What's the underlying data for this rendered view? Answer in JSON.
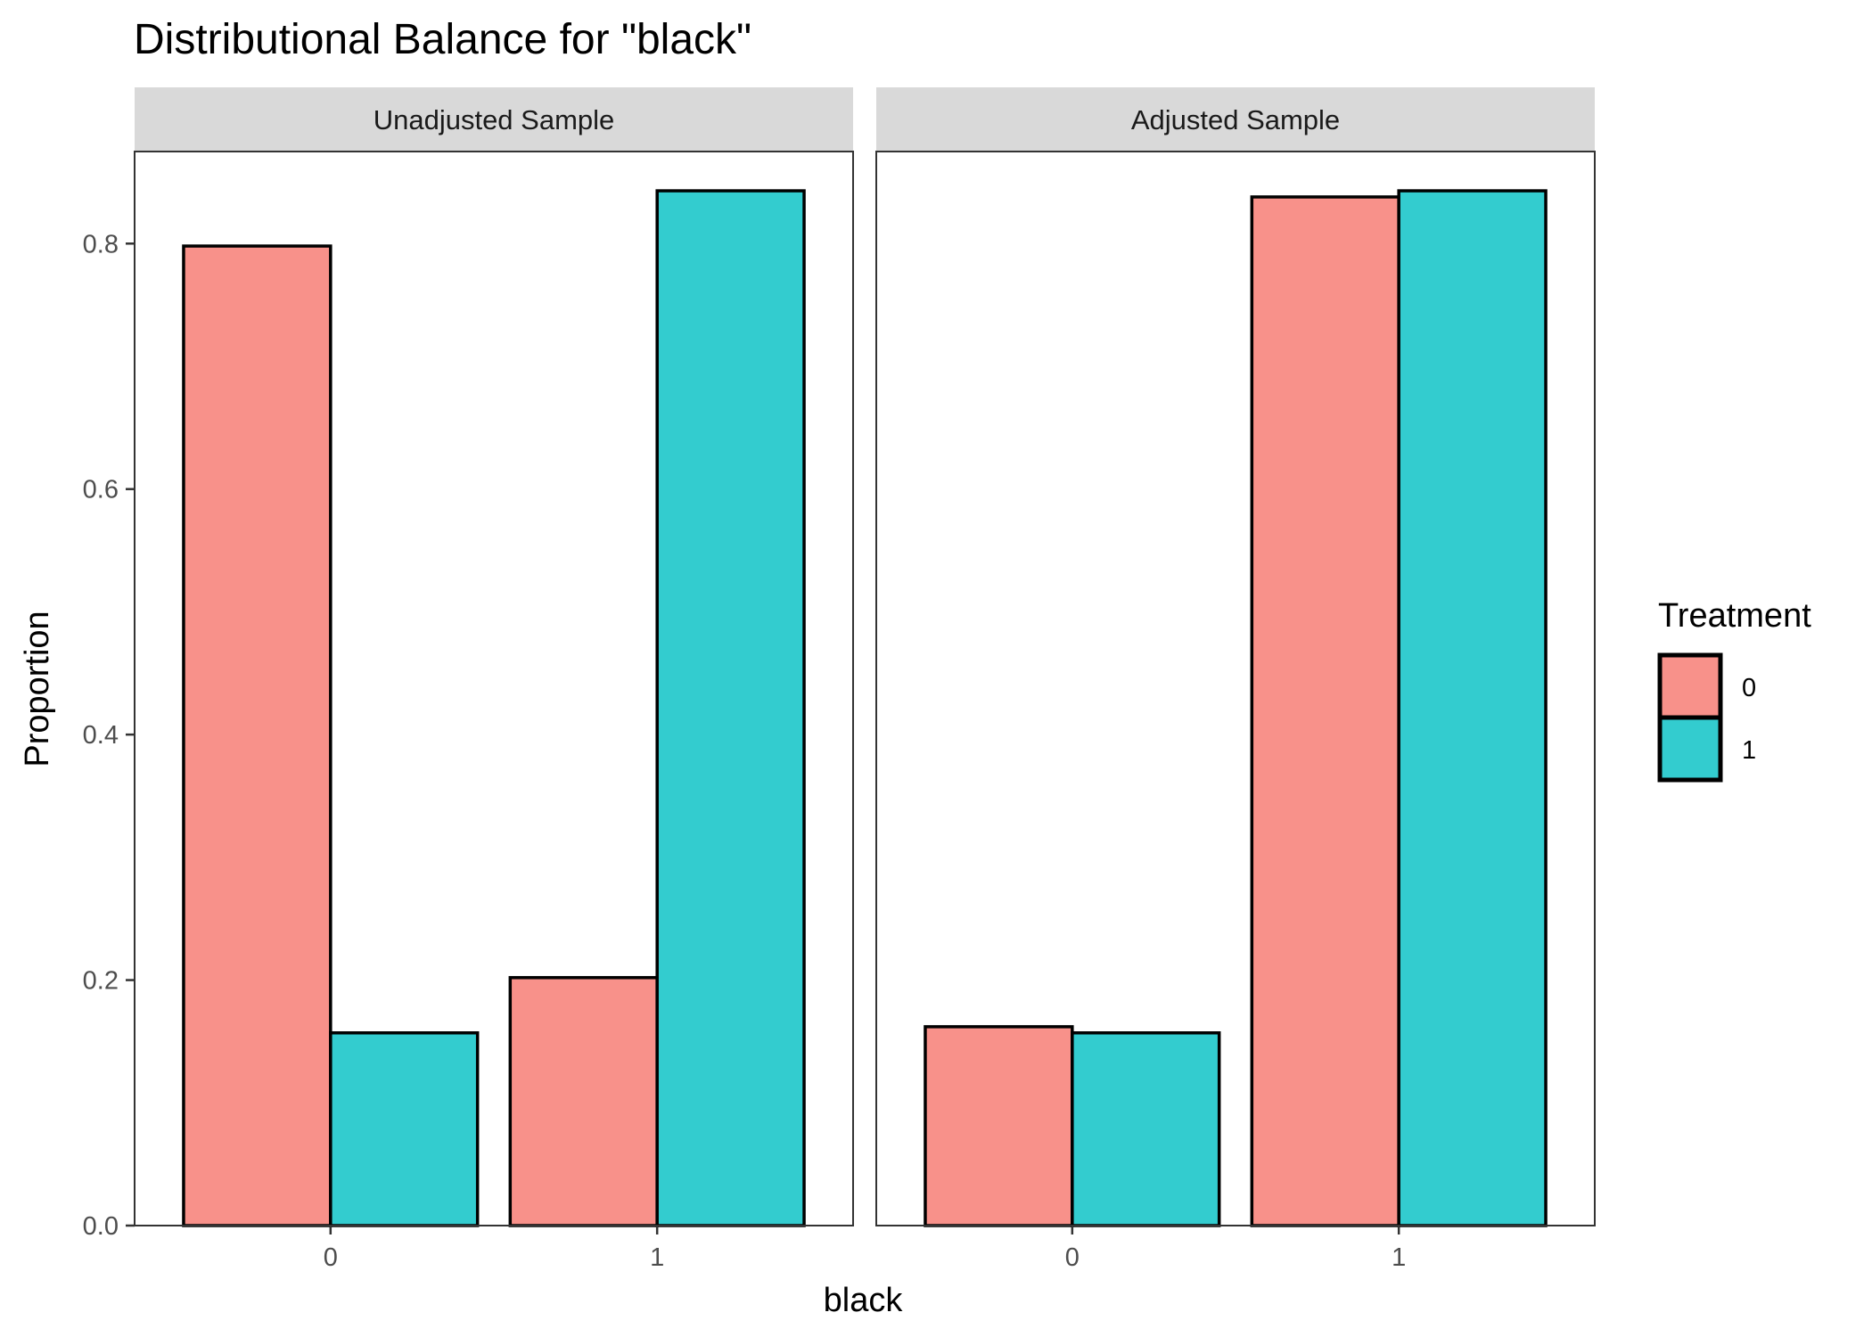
{
  "chart_data": {
    "type": "bar",
    "title": "Distributional Balance for \"black\"",
    "xlabel": "black",
    "ylabel": "Proportion",
    "ylim": [
      0,
      0.875
    ],
    "y_ticks": [
      "0.0",
      "0.2",
      "0.4",
      "0.6",
      "0.8"
    ],
    "categories": [
      "0",
      "1"
    ],
    "legend": {
      "title": "Treatment",
      "placement": "right",
      "entries": [
        {
          "label": "0",
          "color": "#F8918A"
        },
        {
          "label": "1",
          "color": "#33CCCF"
        }
      ]
    },
    "panels": [
      {
        "label": "Unadjusted Sample",
        "series": [
          {
            "name": "0",
            "values": [
              0.798,
              0.202
            ]
          },
          {
            "name": "1",
            "values": [
              0.157,
              0.843
            ]
          }
        ]
      },
      {
        "label": "Adjusted Sample",
        "series": [
          {
            "name": "0",
            "values": [
              0.162,
              0.838
            ]
          },
          {
            "name": "1",
            "values": [
              0.157,
              0.843
            ]
          }
        ]
      }
    ],
    "grid": false,
    "bar_outline_color": "#000000",
    "strip_color": "#D9D9D9"
  }
}
